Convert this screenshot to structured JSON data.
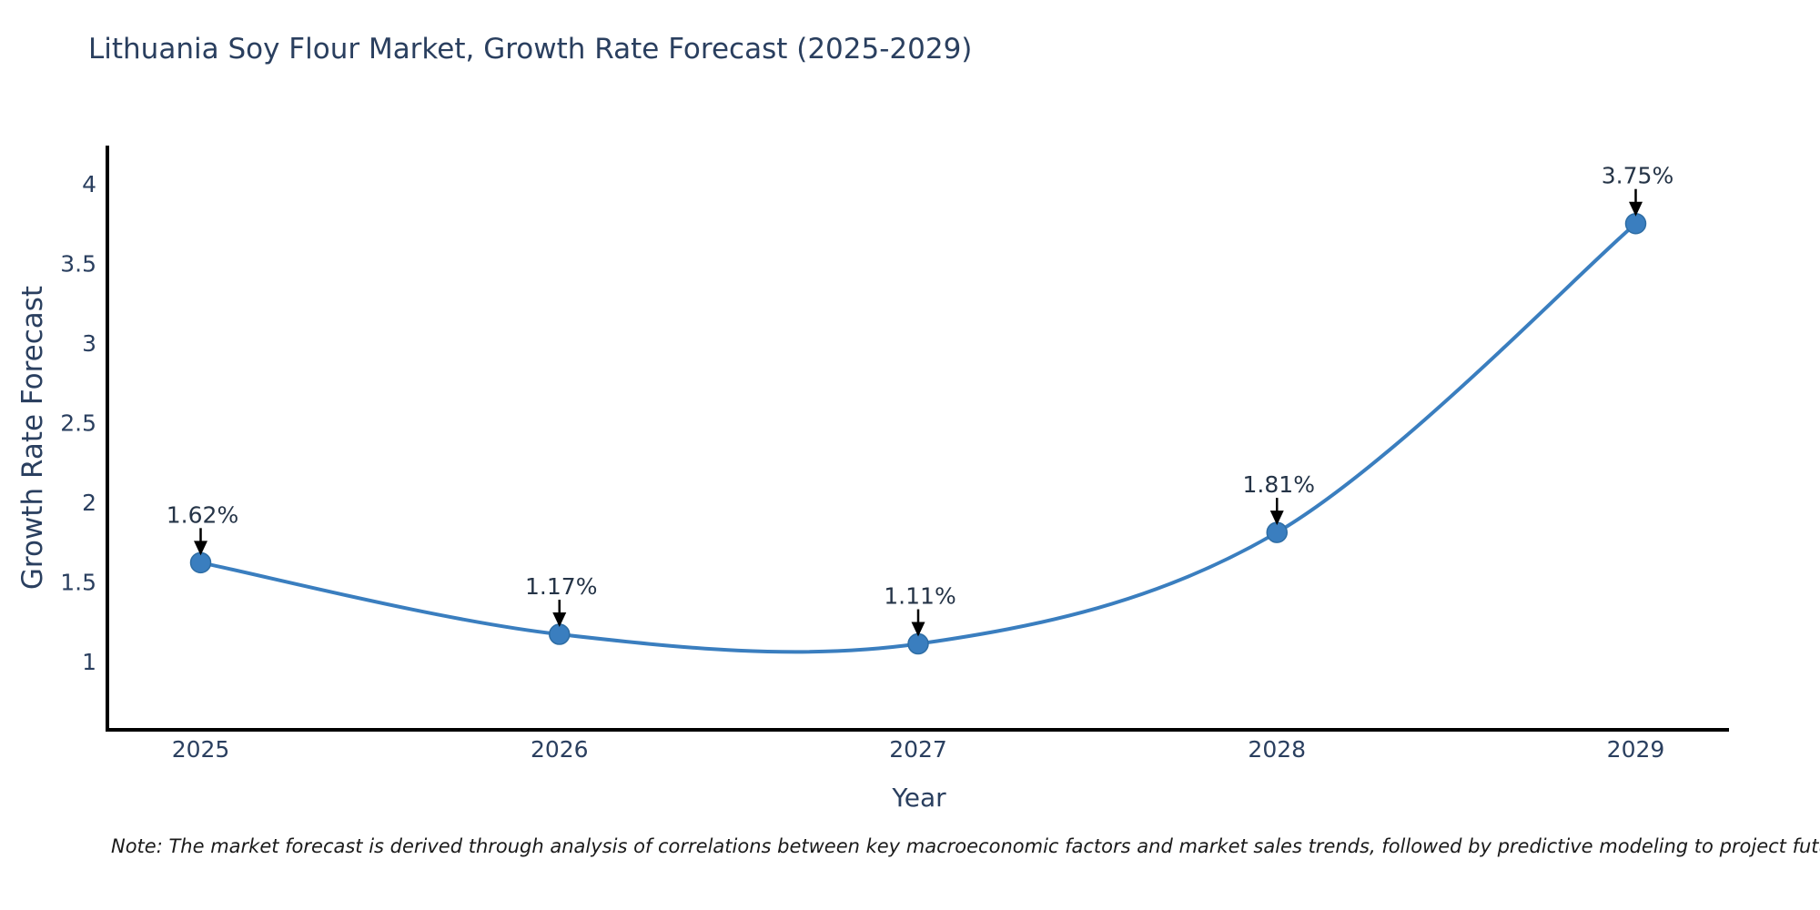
{
  "note": {
    "text": "Note: The market forecast is derived through analysis of correlations between key macroeconomic factors and market sales trends, followed by predictive modeling to project future sales"
  },
  "chart_data": {
    "type": "line",
    "title": "Lithuania Soy Flour Market, Growth Rate Forecast (2025-2029)",
    "xlabel": "Year",
    "ylabel": "Growth Rate Forecast",
    "x": [
      2025,
      2026,
      2027,
      2028,
      2029
    ],
    "series": [
      {
        "name": "Growth Rate Forecast",
        "values": [
          1.62,
          1.17,
          1.11,
          1.81,
          3.75
        ]
      }
    ],
    "point_labels": [
      "1.62%",
      "1.17%",
      "1.11%",
      "1.81%",
      "3.75%"
    ],
    "xticks": [
      "2025",
      "2026",
      "2027",
      "2028",
      "2029"
    ],
    "yticks": [
      "4",
      "3.5",
      "3",
      "2.5",
      "2",
      "1.5",
      "1"
    ],
    "ytick_values": [
      4,
      3.5,
      3,
      2.5,
      2,
      1.5,
      1
    ],
    "xlim": [
      2024.74,
      2029.26
    ],
    "ylim": [
      0.57,
      4.24
    ],
    "grid": false,
    "legend": "none",
    "line_shape": "spline",
    "colors": {
      "line": "#3a7ebf",
      "marker": "#3a7ebf",
      "marker_edge": "#2e6da4",
      "axis": "#000000",
      "text": "#2a3f5f",
      "annotation_text": "#253447",
      "arrow": "#000000",
      "background": "#ffffff"
    }
  }
}
